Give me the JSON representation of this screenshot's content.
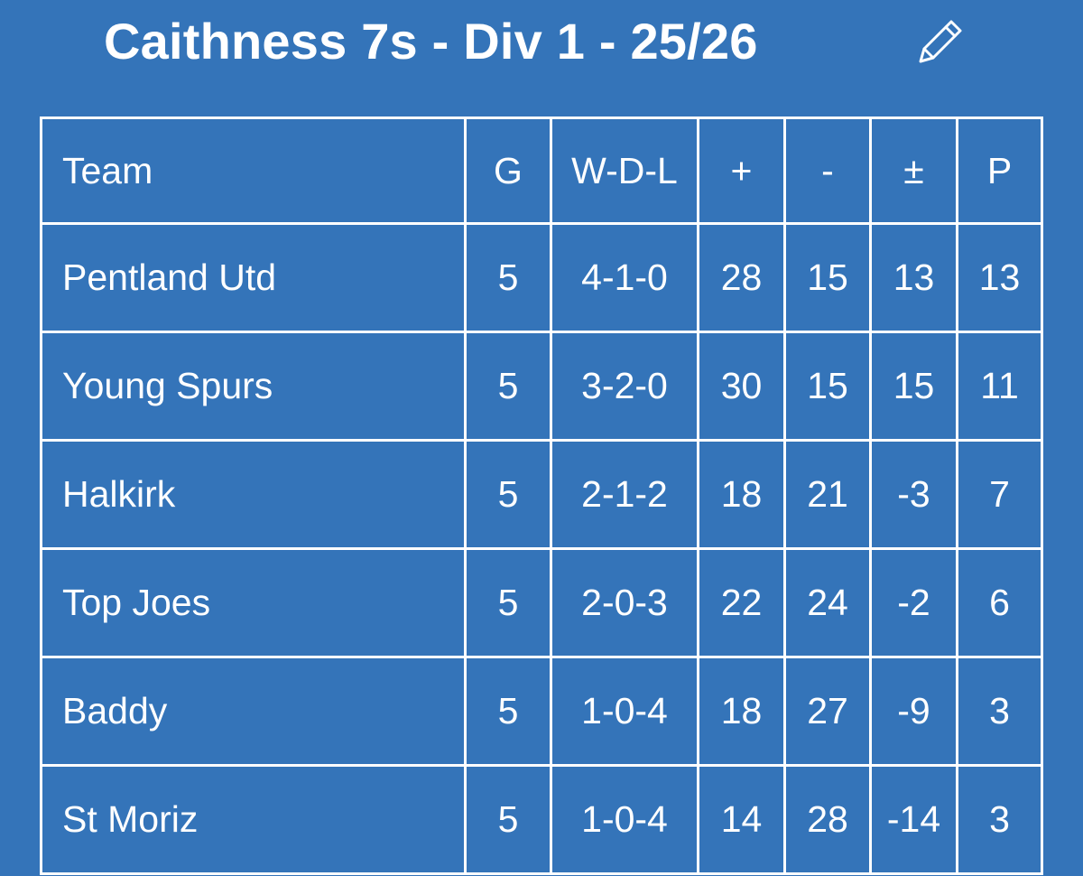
{
  "header": {
    "title": "Caithness 7s - Div 1 - 25/26",
    "edit_icon": "pencil-icon"
  },
  "table": {
    "columns": [
      "Team",
      "G",
      "W-D-L",
      "+",
      "-",
      "±",
      "P"
    ],
    "rows": [
      [
        "Pentland Utd",
        "5",
        "4-1-0",
        "28",
        "15",
        "13",
        "13"
      ],
      [
        "Young Spurs",
        "5",
        "3-2-0",
        "30",
        "15",
        "15",
        "11"
      ],
      [
        "Halkirk",
        "5",
        "2-1-2",
        "18",
        "21",
        "-3",
        "7"
      ],
      [
        "Top Joes",
        "5",
        "2-0-3",
        "22",
        "24",
        "-2",
        "6"
      ],
      [
        "Baddy",
        "5",
        "1-0-4",
        "18",
        "27",
        "-9",
        "3"
      ],
      [
        "St Moriz",
        "5",
        "1-0-4",
        "14",
        "28",
        "-14",
        "3"
      ]
    ]
  },
  "colors": {
    "background": "#3474b9",
    "text": "#ffffff",
    "grid": "#ffffff"
  }
}
